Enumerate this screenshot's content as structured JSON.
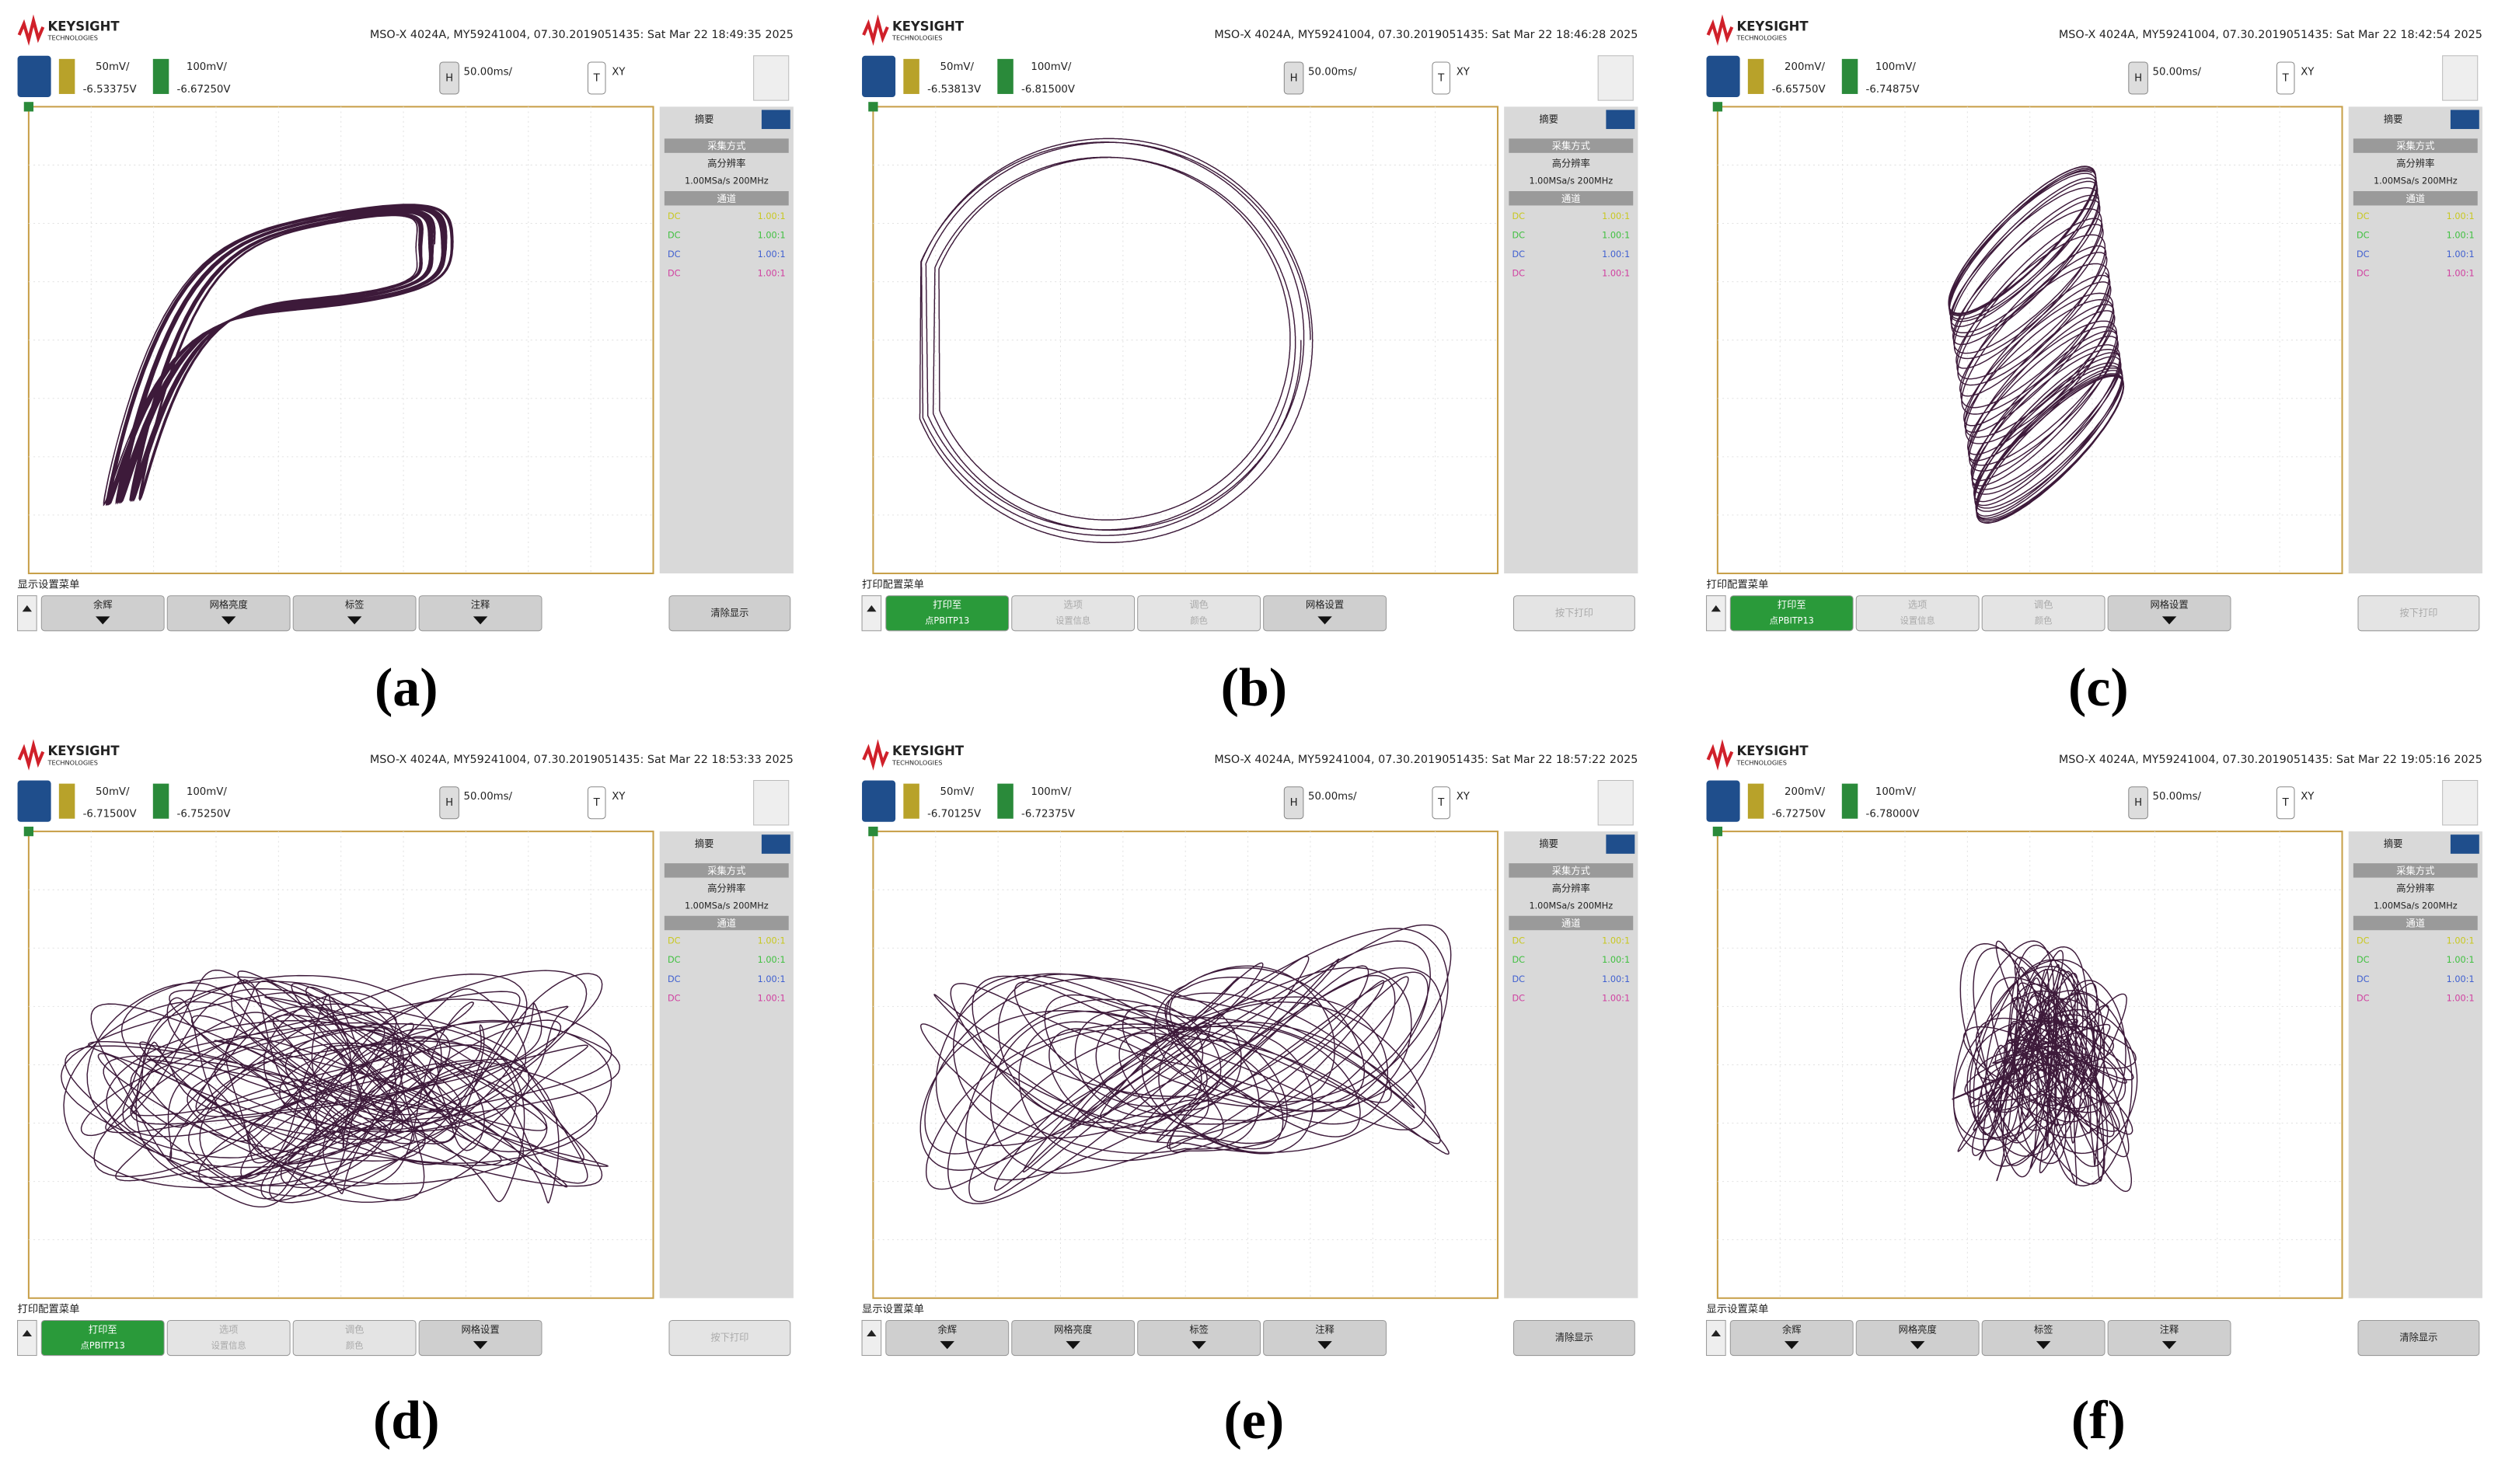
{
  "brand": "KEYSIGHT",
  "brand_sub": "TECHNOLOGIES",
  "h_key": "H",
  "t_key": "T",
  "sidebar": {
    "tab": "摘要",
    "acq_title": "采集方式",
    "acq_mode": "高分辨率",
    "acq_rate": "1.00MSa/s  200MHz",
    "ch_title": "通道",
    "coupling": "DC",
    "probe": "1.00:1"
  },
  "panels": [
    {
      "label": "(a)",
      "header": "MSO-X 4024A, MY59241004, 07.30.2019051435: Sat Mar 22 18:49:35 2025",
      "ch1_scale": "50mV/",
      "ch1_offset": "-6.53375V",
      "ch2_scale": "100mV/",
      "ch2_offset": "-6.67250V",
      "timebase": "50.00ms/",
      "mode": "XY",
      "menu": {
        "title": "显示设置菜单",
        "buttons": [
          {
            "label": "余辉"
          },
          {
            "label": "网格亮度"
          },
          {
            "label": "标签"
          },
          {
            "label": "注释"
          }
        ],
        "right": "清除显示"
      }
    },
    {
      "label": "(b)",
      "header": "MSO-X 4024A, MY59241004, 07.30.2019051435: Sat Mar 22 18:46:28 2025",
      "ch1_scale": "50mV/",
      "ch1_offset": "-6.53813V",
      "ch2_scale": "100mV/",
      "ch2_offset": "-6.81500V",
      "timebase": "50.00ms/",
      "mode": "XY",
      "menu": {
        "title": "打印配置菜单",
        "buttons": [
          {
            "label": "打印至",
            "sub": "点PBITP13"
          },
          {
            "label": "选项",
            "sub": "设置信息"
          },
          {
            "label": "调色",
            "sub": "颜色"
          },
          {
            "label": "网格设置"
          }
        ],
        "right": "按下打印"
      }
    },
    {
      "label": "(c)",
      "header": "MSO-X 4024A, MY59241004, 07.30.2019051435: Sat Mar 22 18:42:54 2025",
      "ch1_scale": "200mV/",
      "ch1_offset": "-6.65750V",
      "ch2_scale": "100mV/",
      "ch2_offset": "-6.74875V",
      "timebase": "50.00ms/",
      "mode": "XY",
      "menu": {
        "title": "打印配置菜单",
        "buttons": [
          {
            "label": "打印至",
            "sub": "点PBITP13"
          },
          {
            "label": "选项",
            "sub": "设置信息"
          },
          {
            "label": "调色",
            "sub": "颜色"
          },
          {
            "label": "网格设置"
          }
        ],
        "right": "按下打印"
      }
    },
    {
      "label": "(d)",
      "header": "MSO-X 4024A, MY59241004, 07.30.2019051435: Sat Mar 22 18:53:33 2025",
      "ch1_scale": "50mV/",
      "ch1_offset": "-6.71500V",
      "ch2_scale": "100mV/",
      "ch2_offset": "-6.75250V",
      "timebase": "50.00ms/",
      "mode": "XY",
      "menu": {
        "title": "打印配置菜单",
        "buttons": [
          {
            "label": "打印至",
            "sub": "点PBITP13"
          },
          {
            "label": "选项",
            "sub": "设置信息"
          },
          {
            "label": "调色",
            "sub": "颜色"
          },
          {
            "label": "网格设置"
          }
        ],
        "right": "按下打印"
      }
    },
    {
      "label": "(e)",
      "header": "MSO-X 4024A, MY59241004, 07.30.2019051435: Sat Mar 22 18:57:22 2025",
      "ch1_scale": "50mV/",
      "ch1_offset": "-6.70125V",
      "ch2_scale": "100mV/",
      "ch2_offset": "-6.72375V",
      "timebase": "50.00ms/",
      "mode": "XY",
      "menu": {
        "title": "显示设置菜单",
        "buttons": [
          {
            "label": "余辉"
          },
          {
            "label": "网格亮度"
          },
          {
            "label": "标签"
          },
          {
            "label": "注释"
          }
        ],
        "right": "清除显示"
      }
    },
    {
      "label": "(f)",
      "header": "MSO-X 4024A, MY59241004, 07.30.2019051435: Sat Mar 22 19:05:16 2025",
      "ch1_scale": "200mV/",
      "ch1_offset": "-6.72750V",
      "ch2_scale": "100mV/",
      "ch2_offset": "-6.78000V",
      "timebase": "50.00ms/",
      "mode": "XY",
      "menu": {
        "title": "显示设置菜单",
        "buttons": [
          {
            "label": "余辉"
          },
          {
            "label": "网格亮度"
          },
          {
            "label": "标签"
          },
          {
            "label": "注释"
          }
        ],
        "right": "清除显示"
      }
    }
  ]
}
